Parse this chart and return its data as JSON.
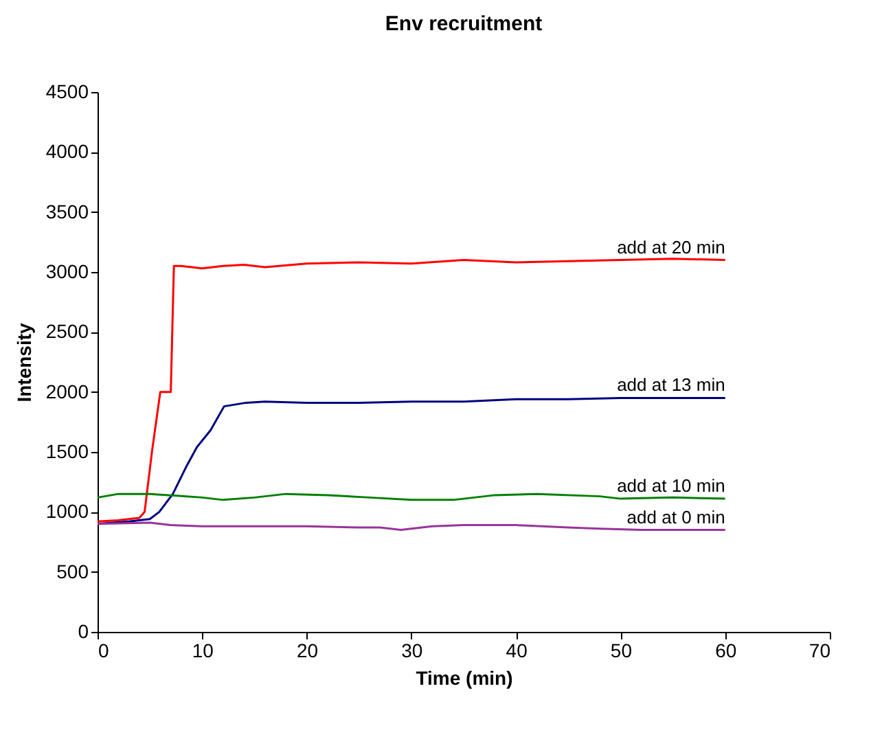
{
  "chart_data": {
    "type": "line",
    "title": "Env recruitment",
    "xlabel": "Time (min)",
    "ylabel": "Intensity",
    "xlim": [
      0,
      70
    ],
    "xticks": [
      0,
      10,
      20,
      30,
      40,
      50,
      60,
      70
    ],
    "ylim": [
      0,
      4500
    ],
    "yticks": [
      0,
      500,
      1000,
      1500,
      2000,
      2500,
      3000,
      3500,
      4000,
      4500
    ],
    "grid": false,
    "legend": false,
    "marker": "none",
    "line_style": "solid",
    "series": [
      {
        "name": "add at 20 min",
        "color": "#ff0000",
        "x": [
          0,
          2,
          4,
          4.5,
          5.2,
          6,
          7,
          7.3,
          8,
          10,
          12,
          14,
          16,
          20,
          25,
          30,
          35,
          40,
          45,
          50,
          55,
          60
        ],
        "values": [
          920,
          930,
          950,
          1000,
          1500,
          2000,
          2000,
          3050,
          3050,
          3030,
          3050,
          3060,
          3040,
          3070,
          3080,
          3070,
          3100,
          3080,
          3090,
          3100,
          3110,
          3100
        ]
      },
      {
        "name": "add at 13 min",
        "color": "#000080",
        "x": [
          0,
          3,
          5,
          5.9,
          7.2,
          8.5,
          9.5,
          10.8,
          12.1,
          14.2,
          16,
          20,
          25,
          30,
          35,
          40,
          45,
          50,
          55,
          60
        ],
        "values": [
          900,
          920,
          940,
          1000,
          1150,
          1380,
          1540,
          1680,
          1880,
          1910,
          1920,
          1910,
          1910,
          1920,
          1920,
          1940,
          1940,
          1950,
          1950,
          1950
        ]
      },
      {
        "name": "add at 10 min",
        "color": "#008000",
        "x": [
          0,
          2,
          5,
          10,
          12,
          15,
          18,
          22,
          26,
          30,
          34,
          38,
          42,
          48,
          50,
          55,
          60
        ],
        "values": [
          1120,
          1150,
          1150,
          1120,
          1100,
          1120,
          1150,
          1140,
          1120,
          1100,
          1100,
          1140,
          1150,
          1130,
          1110,
          1120,
          1110
        ]
      },
      {
        "name": "add at 0 min",
        "color": "#993399",
        "x": [
          0,
          5,
          7,
          10,
          15,
          20,
          25,
          27,
          29,
          32,
          35,
          40,
          45,
          48,
          52,
          55,
          60
        ],
        "values": [
          900,
          910,
          890,
          880,
          880,
          880,
          870,
          870,
          850,
          880,
          890,
          890,
          870,
          860,
          850,
          850,
          850
        ]
      }
    ]
  }
}
